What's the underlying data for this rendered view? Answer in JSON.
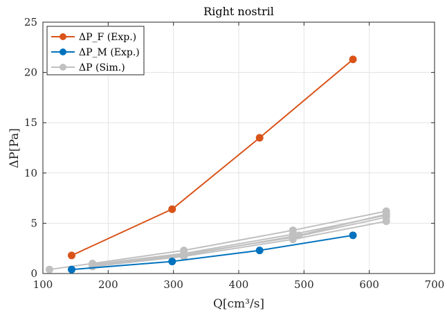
{
  "chart_data": {
    "type": "line",
    "title": "Right nostril",
    "xlabel": "Q[cm³/s]",
    "ylabel": "ΔP[Pa]",
    "xlim": [
      100,
      700
    ],
    "ylim": [
      0,
      25
    ],
    "xticks": [
      "100",
      "200",
      "300",
      "400",
      "500",
      "600",
      "700"
    ],
    "yticks": [
      "0",
      "5",
      "10",
      "15",
      "20",
      "25"
    ],
    "grid": true,
    "legend_position": "top-left",
    "series": [
      {
        "name": "ΔP_F (Exp.)",
        "color": "#D95319",
        "points": [
          [
            144,
            1.8
          ],
          [
            298,
            6.4
          ],
          [
            432,
            13.5
          ],
          [
            575,
            21.3
          ]
        ]
      },
      {
        "name": "ΔP_M (Exp.)",
        "color": "#0072BD",
        "points": [
          [
            144,
            0.4
          ],
          [
            298,
            1.2
          ],
          [
            432,
            2.3
          ],
          [
            575,
            3.8
          ]
        ]
      },
      {
        "name": "ΔP (Sim.)",
        "color": "#C0C0C0",
        "points": [
          [
            110,
            0.4
          ],
          [
            176,
            1.0
          ],
          [
            316,
            2.3
          ],
          [
            483,
            4.3
          ],
          [
            626,
            6.2
          ]
        ]
      },
      {
        "name": "",
        "color": "#C0C0C0",
        "points": [
          [
            176,
            0.9
          ],
          [
            316,
            2.0
          ],
          [
            483,
            3.9
          ],
          [
            626,
            5.8
          ]
        ]
      },
      {
        "name": "",
        "color": "#C0C0C0",
        "points": [
          [
            176,
            0.8
          ],
          [
            316,
            1.9
          ],
          [
            483,
            3.6
          ],
          [
            626,
            5.6
          ]
        ]
      },
      {
        "name": "",
        "color": "#C0C0C0",
        "points": [
          [
            176,
            0.7
          ],
          [
            316,
            1.7
          ],
          [
            483,
            3.4
          ],
          [
            626,
            5.2
          ]
        ]
      },
      {
        "name": "",
        "color": "#C0C0C0",
        "points": [
          [
            176,
            0.8
          ],
          [
            316,
            1.8
          ],
          [
            492,
            3.8
          ],
          [
            626,
            5.9
          ]
        ]
      }
    ]
  }
}
